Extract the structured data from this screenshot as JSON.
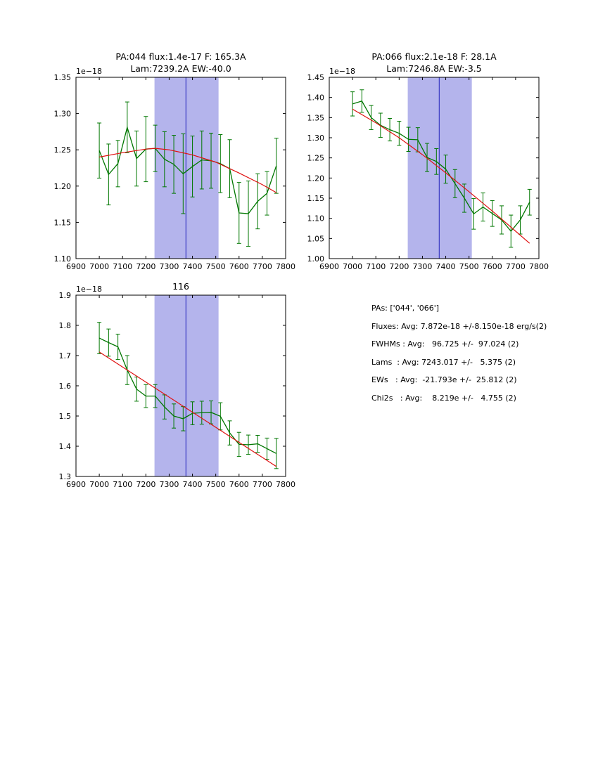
{
  "chart_data": [
    {
      "type": "line",
      "title_line1": "PA:044 flux:1.4e-17 F: 165.3A",
      "title_line2": "Lam:7239.2A EW:-40.0",
      "offset_label": "1e−18",
      "xlabel": "",
      "ylabel": "",
      "xlim": [
        6900,
        7800
      ],
      "ylim": [
        1.1,
        1.35
      ],
      "xtick_labels": [
        "6900",
        "7000",
        "7100",
        "7200",
        "7300",
        "7400",
        "7500",
        "7600",
        "7700",
        "7800"
      ],
      "ytick_labels": [
        "1.10",
        "1.15",
        "1.20",
        "1.25",
        "1.30",
        "1.35"
      ],
      "span": [
        7237,
        7512
      ],
      "vline": 7372,
      "x": [
        7000,
        7040,
        7080,
        7120,
        7160,
        7200,
        7240,
        7280,
        7320,
        7360,
        7400,
        7440,
        7480,
        7520,
        7560,
        7600,
        7640,
        7680,
        7720,
        7760
      ],
      "y": [
        1.249,
        1.216,
        1.231,
        1.281,
        1.238,
        1.251,
        1.252,
        1.237,
        1.23,
        1.217,
        1.227,
        1.236,
        1.235,
        1.231,
        1.224,
        1.163,
        1.162,
        1.179,
        1.19,
        1.228
      ],
      "yerr": [
        0.038,
        0.042,
        0.032,
        0.035,
        0.038,
        0.045,
        0.032,
        0.038,
        0.04,
        0.055,
        0.042,
        0.04,
        0.038,
        0.04,
        0.04,
        0.042,
        0.045,
        0.038,
        0.03,
        0.038
      ],
      "fit_x": [
        7000,
        7100,
        7200,
        7240,
        7300,
        7400,
        7500,
        7600,
        7700,
        7760
      ],
      "fit_y": [
        1.24,
        1.246,
        1.251,
        1.252,
        1.25,
        1.243,
        1.233,
        1.218,
        1.202,
        1.191
      ]
    },
    {
      "type": "line",
      "title_line1": "PA:066 flux:2.1e-18 F: 28.1A",
      "title_line2": "Lam:7246.8A EW:-3.5",
      "offset_label": "1e−18",
      "xlabel": "",
      "ylabel": "",
      "xlim": [
        6900,
        7800
      ],
      "ylim": [
        1.0,
        1.45
      ],
      "xtick_labels": [
        "6900",
        "7000",
        "7100",
        "7200",
        "7300",
        "7400",
        "7500",
        "7600",
        "7700",
        "7800"
      ],
      "ytick_labels": [
        "1.00",
        "1.05",
        "1.10",
        "1.15",
        "1.20",
        "1.25",
        "1.30",
        "1.35",
        "1.40",
        "1.45"
      ],
      "span": [
        7237,
        7512
      ],
      "vline": 7372,
      "x": [
        7000,
        7040,
        7080,
        7120,
        7160,
        7200,
        7240,
        7280,
        7320,
        7360,
        7400,
        7440,
        7480,
        7520,
        7560,
        7600,
        7640,
        7680,
        7720,
        7760
      ],
      "y": [
        1.384,
        1.391,
        1.35,
        1.331,
        1.32,
        1.311,
        1.296,
        1.295,
        1.251,
        1.241,
        1.222,
        1.186,
        1.15,
        1.111,
        1.128,
        1.112,
        1.096,
        1.068,
        1.096,
        1.14
      ],
      "yerr": [
        0.03,
        0.028,
        0.03,
        0.03,
        0.028,
        0.03,
        0.03,
        0.03,
        0.035,
        0.032,
        0.035,
        0.035,
        0.035,
        0.038,
        0.035,
        0.032,
        0.035,
        0.04,
        0.035,
        0.032
      ],
      "fit_x": [
        7000,
        7100,
        7200,
        7300,
        7400,
        7500,
        7600,
        7700,
        7760
      ],
      "fit_y": [
        1.371,
        1.337,
        1.3,
        1.258,
        1.213,
        1.166,
        1.118,
        1.068,
        1.038
      ]
    },
    {
      "type": "line",
      "title_line1": "116",
      "offset_label": "1e−18",
      "xlabel": "",
      "ylabel": "",
      "xlim": [
        6900,
        7800
      ],
      "ylim": [
        1.3,
        1.9
      ],
      "xtick_labels": [
        "6900",
        "7000",
        "7100",
        "7200",
        "7300",
        "7400",
        "7500",
        "7600",
        "7700",
        "7800"
      ],
      "ytick_labels": [
        "1.3",
        "1.4",
        "1.5",
        "1.6",
        "1.7",
        "1.8",
        "1.9"
      ],
      "span": [
        7237,
        7512
      ],
      "vline": 7372,
      "x": [
        7000,
        7040,
        7080,
        7120,
        7160,
        7200,
        7240,
        7280,
        7320,
        7360,
        7400,
        7440,
        7480,
        7520,
        7560,
        7600,
        7640,
        7680,
        7720,
        7760
      ],
      "y": [
        1.758,
        1.743,
        1.729,
        1.652,
        1.589,
        1.566,
        1.566,
        1.53,
        1.5,
        1.491,
        1.509,
        1.511,
        1.512,
        1.499,
        1.444,
        1.406,
        1.405,
        1.408,
        1.392,
        1.376
      ],
      "yerr": [
        0.052,
        0.045,
        0.042,
        0.048,
        0.04,
        0.038,
        0.038,
        0.04,
        0.04,
        0.04,
        0.038,
        0.038,
        0.038,
        0.045,
        0.04,
        0.04,
        0.032,
        0.028,
        0.035,
        0.05
      ],
      "fit_x": [
        7000,
        7760
      ],
      "fit_y": [
        1.712,
        1.333
      ]
    }
  ],
  "stats": {
    "lines": [
      "PAs: ['044', '066']",
      "Fluxes: Avg: 7.872e-18 +/-8.150e-18 erg/s(2)",
      "FWHMs : Avg:   96.725 +/-  97.024 (2)",
      "Lams  : Avg: 7243.017 +/-   5.375 (2)",
      "EWs   : Avg:  -21.793e +/-  25.812 (2)",
      "Chi2s   : Avg:    8.219e +/-   4.755 (2)"
    ]
  },
  "colors": {
    "data": "#007700",
    "fit": "#e01010",
    "span": "#b4b4ec",
    "vline": "#2222bb",
    "axes": "#000000"
  }
}
